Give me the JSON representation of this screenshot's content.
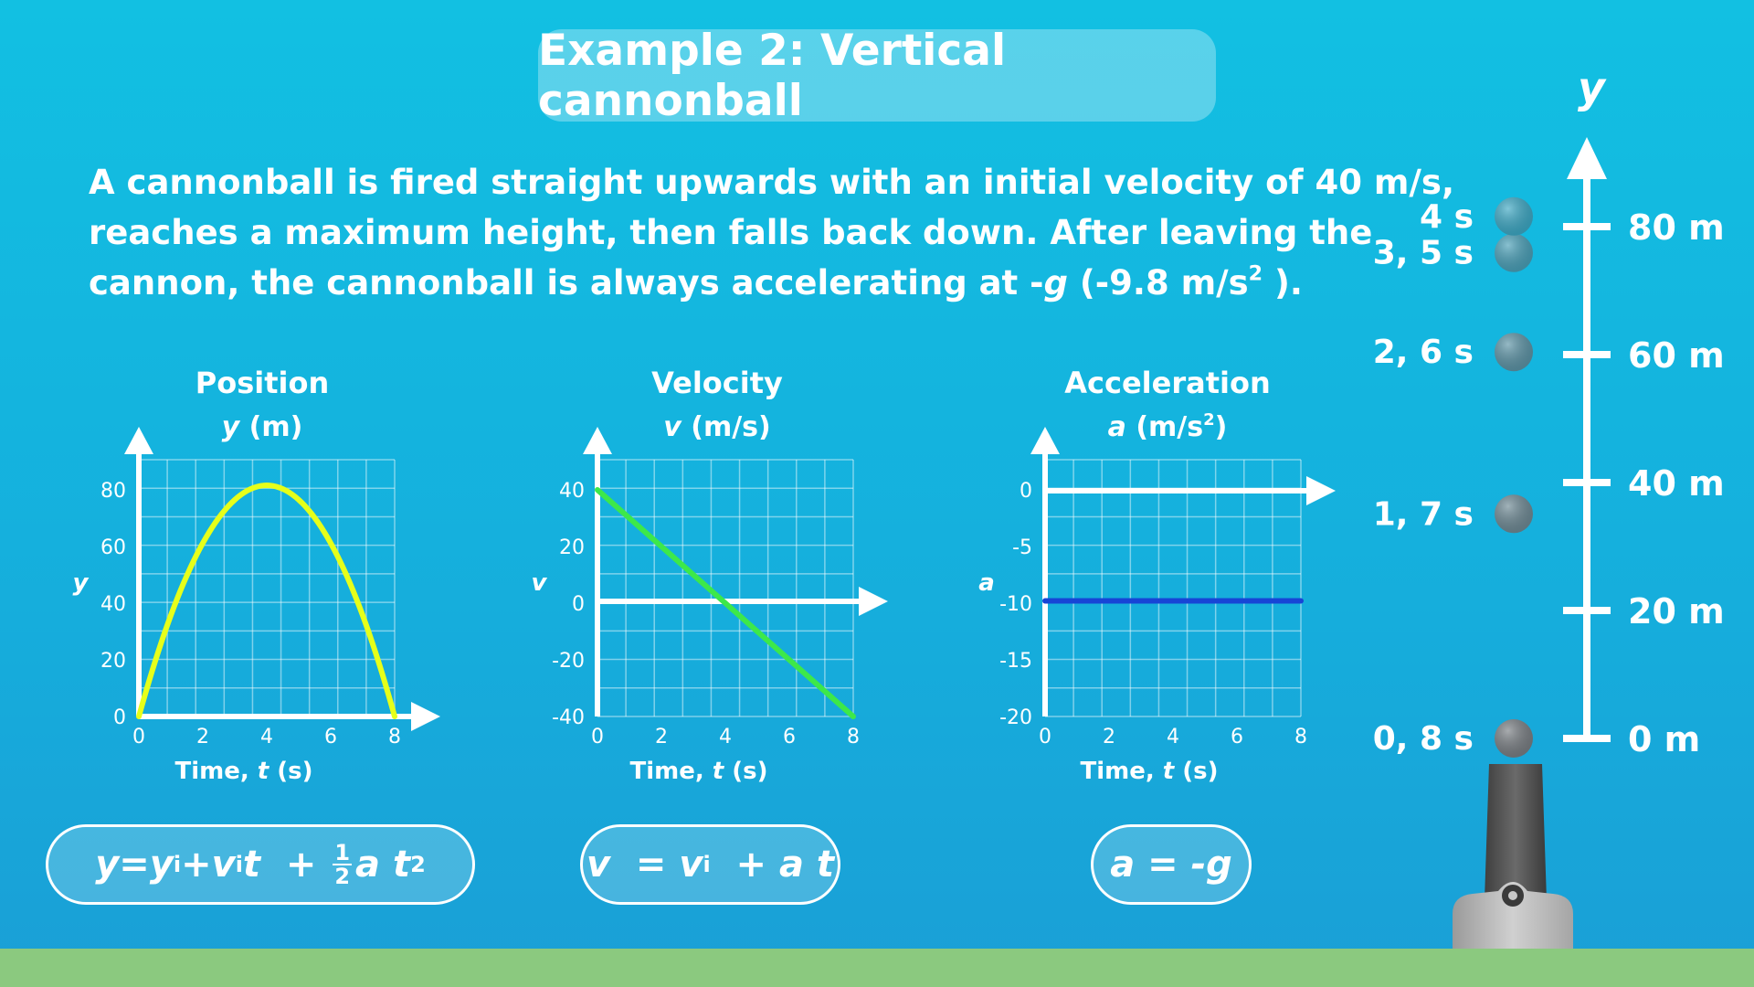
{
  "title": "Example 2: Vertical cannonball",
  "description": {
    "line1": "A cannonball is fired straight upwards with an initial velocity of 40 m/s,",
    "line2": "reaches a maximum height, then falls back down. After leaving the",
    "line3_pre": "cannon, the cannonball is always accelerating at -",
    "line3_var": "g",
    "line3_mid": " (-9.8 m/s",
    "line3_sup": "2",
    "line3_post": " )."
  },
  "formulas": {
    "position": {
      "y": "y",
      "eq": " = ",
      "yi": "y",
      "yi_sub": "i",
      "plus1": " + ",
      "vi": "v",
      "vi_sub": "i",
      "t": "t",
      "plus2": "  + ",
      "frac_num": "1",
      "frac_den": "2",
      "at": "a t",
      "sq": "2"
    },
    "velocity": {
      "v": "v",
      "eq": "  = ",
      "vi": "v",
      "vi_sub": "i",
      "rest": "  + a t"
    },
    "acceleration": {
      "text": "a = -g"
    }
  },
  "chart_data": [
    {
      "type": "line",
      "title": "Position",
      "unit_var": "y",
      "unit": " (m)",
      "ylabel": "y",
      "xlabel_pre": "Time, ",
      "xlabel_var": "t",
      "xlabel_post": " (s)",
      "x_ticks": [
        "0",
        "2",
        "4",
        "6",
        "8"
      ],
      "y_ticks": [
        "0",
        "20",
        "40",
        "60",
        "80"
      ],
      "xlim": [
        0,
        8
      ],
      "ylim": [
        0,
        80
      ],
      "color": "#e6ff1a",
      "x": [
        0,
        1,
        2,
        3,
        4,
        5,
        6,
        7,
        8
      ],
      "values": [
        0,
        35.1,
        60.4,
        75.9,
        81.6,
        75.9,
        60.4,
        35.1,
        0
      ]
    },
    {
      "type": "line",
      "title": "Velocity",
      "unit_var": "v",
      "unit": " (m/s)",
      "ylabel": "v",
      "xlabel_pre": "Time, ",
      "xlabel_var": "t",
      "xlabel_post": " (s)",
      "x_ticks": [
        "0",
        "2",
        "4",
        "6",
        "8"
      ],
      "y_ticks": [
        "-40",
        "-20",
        "0",
        "20",
        "40"
      ],
      "xlim": [
        0,
        8
      ],
      "ylim": [
        -40,
        40
      ],
      "color": "#3de84a",
      "x": [
        0,
        8
      ],
      "values": [
        40,
        -40
      ]
    },
    {
      "type": "line",
      "title": "Acceleration",
      "unit_var": "a",
      "unit": " (m/s",
      "unit_sup": "2",
      "unit_post": ")",
      "ylabel": "a",
      "xlabel_pre": "Time, ",
      "xlabel_var": "t",
      "xlabel_post": " (s)",
      "x_ticks": [
        "0",
        "2",
        "4",
        "6",
        "8"
      ],
      "y_ticks": [
        "-20",
        "-15",
        "-10",
        "-5",
        "0"
      ],
      "xlim": [
        0,
        8
      ],
      "ylim": [
        -20,
        0
      ],
      "color": "#1745d6",
      "x": [
        0,
        8
      ],
      "values": [
        -9.8,
        -9.8
      ]
    }
  ],
  "height_scale": {
    "axis_label": "y",
    "ticks": [
      {
        "label": "0 m",
        "value": 0
      },
      {
        "label": "20 m",
        "value": 20
      },
      {
        "label": "40 m",
        "value": 40
      },
      {
        "label": "60 m",
        "value": 60
      },
      {
        "label": "80 m",
        "value": 80
      }
    ],
    "balls": [
      {
        "label": "0, 8 s",
        "height": 0,
        "color": "#7a7f84"
      },
      {
        "label": "1, 7 s",
        "height": 35.1,
        "color": "#6f8a95"
      },
      {
        "label": "2, 6 s",
        "height": 60.4,
        "color": "#5d94a6"
      },
      {
        "label": "3, 5 s",
        "height": 75.9,
        "color": "#4aa0b8"
      },
      {
        "label": "4 s",
        "height": 81.6,
        "color": "#3da8c4"
      }
    ]
  }
}
